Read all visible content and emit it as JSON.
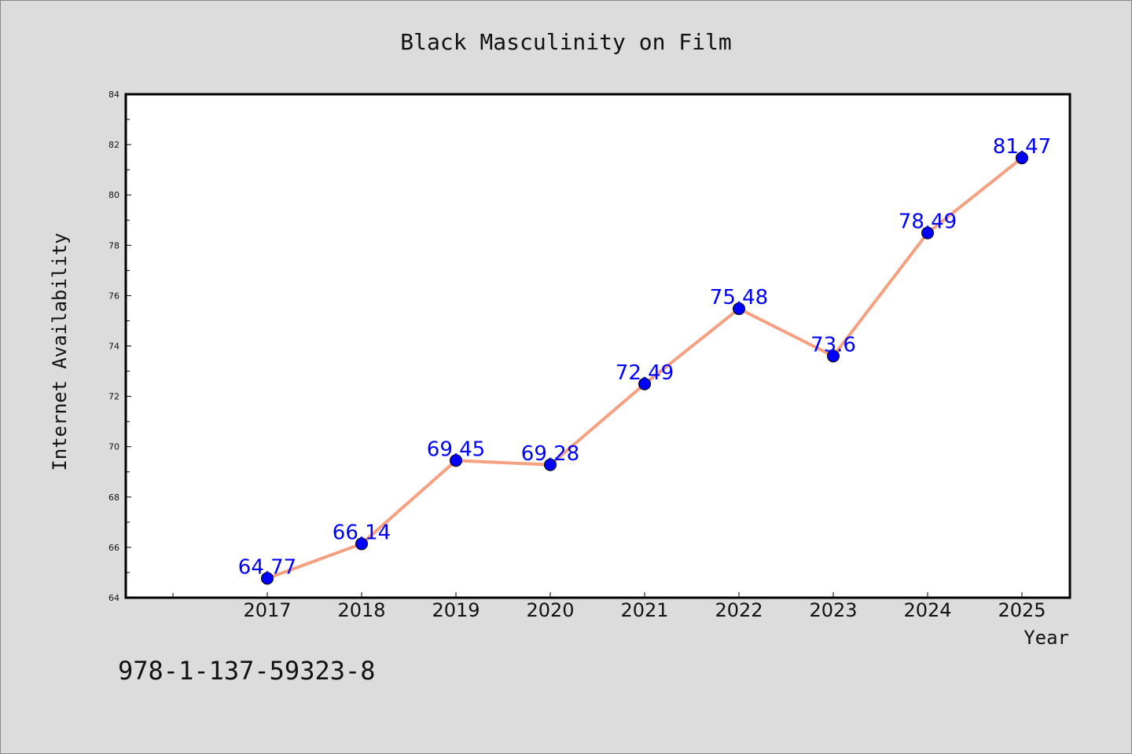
{
  "chart_data": {
    "type": "line",
    "title": "Black Masculinity on Film",
    "xlabel": "Year",
    "ylabel": "Internet Availability",
    "x": [
      "2017",
      "2018",
      "2019",
      "2020",
      "2021",
      "2022",
      "2023",
      "2024",
      "2025"
    ],
    "series": [
      {
        "values": [
          64.77,
          66.14,
          69.45,
          69.28,
          72.49,
          75.48,
          73.6,
          78.49,
          81.47
        ],
        "labels": [
          "64.77",
          "66.14",
          "69.45",
          "69.28",
          "72.49",
          "75.48",
          "73.6",
          "78.49",
          "81.47"
        ]
      }
    ],
    "ylim": [
      64,
      84
    ],
    "yticks": [
      64,
      66,
      68,
      70,
      72,
      74,
      76,
      78,
      80,
      82,
      84
    ],
    "grid": false,
    "legend": "none",
    "line_color": "#f4a081",
    "marker_color": "#0000ff",
    "label_color": "#0000ff",
    "background_color": "#dcdcdc",
    "plot_background": "#ffffff"
  },
  "footer": {
    "isbn": "978-1-137-59323-8"
  }
}
